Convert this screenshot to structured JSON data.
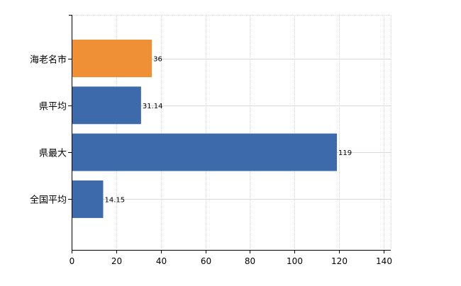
{
  "chart_data": {
    "type": "bar",
    "orientation": "horizontal",
    "title": "",
    "xlabel": "",
    "ylabel": "",
    "categories": [
      "海老名市",
      "県平均",
      "県最大",
      "全国平均"
    ],
    "values": [
      36,
      31.14,
      119,
      14.15
    ],
    "value_labels": [
      "36",
      "31.14",
      "119",
      "14.15"
    ],
    "bar_colors": [
      "#EF8F36",
      "#3C6AAA",
      "#3C6AAA",
      "#3C6AAA"
    ],
    "xlim": [
      0,
      140
    ],
    "xticks": [
      0,
      20,
      40,
      60,
      80,
      100,
      120,
      140
    ],
    "grid": true,
    "legend": "none"
  },
  "colors": {
    "grid": "#d9d9d9",
    "axis": "#000000",
    "text": "#000000"
  }
}
